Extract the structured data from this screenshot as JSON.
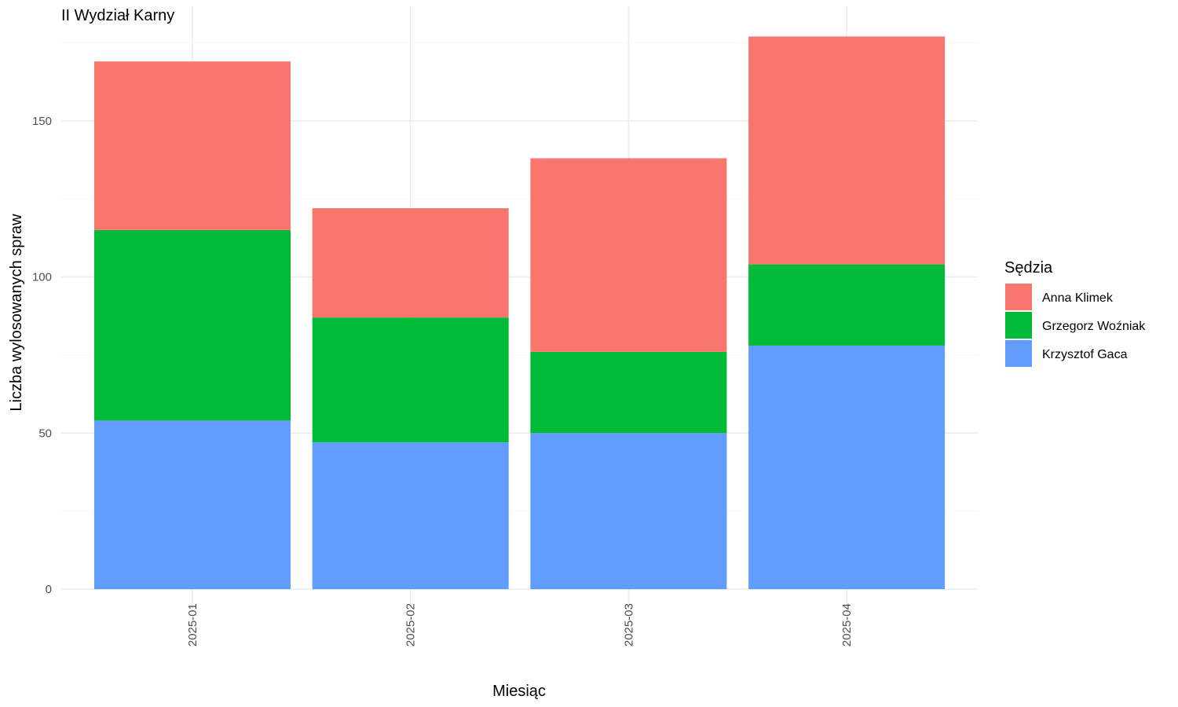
{
  "chart_data": {
    "type": "bar",
    "stacked": true,
    "title": "II Wydział Karny",
    "xlabel": "Miesiąc",
    "ylabel": "Liczba wylosowanych spraw",
    "categories": [
      "2025-01",
      "2025-02",
      "2025-03",
      "2025-04"
    ],
    "series": [
      {
        "name": "Krzysztof Gaca",
        "values": [
          54,
          47,
          50,
          78
        ],
        "color": "#619CFF"
      },
      {
        "name": "Grzegorz Woźniak",
        "values": [
          61,
          40,
          26,
          26
        ],
        "color": "#00BA38"
      },
      {
        "name": "Anna Klimek",
        "values": [
          54,
          35,
          62,
          73
        ],
        "color": "#F8766D"
      }
    ],
    "ylim": [
      0,
      177
    ],
    "yticks": [
      0,
      50,
      100,
      150
    ],
    "grid": true,
    "legend": {
      "title": "Sędzia",
      "placement": "right",
      "items": [
        "Anna Klimek",
        "Grzegorz Woźniak",
        "Krzysztof Gaca"
      ]
    }
  }
}
